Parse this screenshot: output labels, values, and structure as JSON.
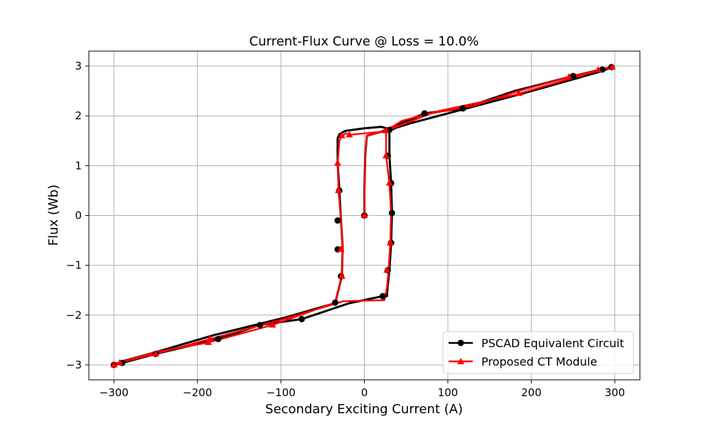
{
  "chart_data": {
    "type": "line",
    "title": "Current-Flux Curve  @ Loss = 10.0%",
    "xlabel": "Secondary Exciting Current (A)",
    "ylabel": "Flux (Wb)",
    "xlim": [
      -330,
      330
    ],
    "ylim": [
      -3.3,
      3.3
    ],
    "xticks": [
      -300,
      -200,
      -100,
      0,
      100,
      200,
      300
    ],
    "yticks": [
      -3,
      -2,
      -1,
      0,
      1,
      2,
      3
    ],
    "xtick_labels": [
      "−300",
      "−200",
      "−100",
      "0",
      "100",
      "200",
      "300"
    ],
    "ytick_labels": [
      "−3",
      "−2",
      "−1",
      "0",
      "1",
      "2",
      "3"
    ],
    "grid": true,
    "legend_position": "lower-right",
    "series": [
      {
        "name": "PSCAD Equivalent Circuit",
        "color": "#000000",
        "marker": "circle",
        "x": [
          0,
          0,
          1,
          3,
          20,
          72,
          118,
          180,
          250,
          296,
          285,
          190,
          100,
          55,
          30,
          30,
          32,
          33,
          32,
          30,
          28,
          27,
          25,
          22,
          -18,
          -75,
          -125,
          -175,
          -250,
          -290,
          -300,
          -288,
          -245,
          -180,
          -95,
          -35,
          -27,
          -26,
          -28,
          -30,
          -32,
          -32,
          -30,
          -28,
          -25,
          -22,
          0,
          20,
          33,
          72,
          118,
          180,
          250,
          296
        ],
        "y": [
          0,
          0.5,
          1.2,
          1.6,
          1.68,
          2.05,
          2.15,
          2.5,
          2.8,
          2.98,
          2.9,
          2.45,
          2.05,
          1.85,
          1.72,
          1.2,
          0.65,
          0.05,
          -0.55,
          -1.1,
          -1.4,
          -1.62,
          -1.62,
          -1.62,
          -1.76,
          -2.08,
          -2.2,
          -2.48,
          -2.78,
          -2.96,
          -3.0,
          -2.92,
          -2.72,
          -2.4,
          -2.05,
          -1.76,
          -1.22,
          -0.65,
          -0.1,
          0.5,
          1.05,
          1.55,
          1.63,
          1.65,
          1.68,
          1.7,
          1.75,
          1.78,
          1.72,
          2.05,
          2.15,
          2.5,
          2.8,
          2.98
        ],
        "marker_x": [
          0,
          72,
          118,
          250,
          296,
          285,
          30,
          28,
          32,
          33,
          32,
          28,
          22,
          -75,
          -125,
          -175,
          -250,
          -290,
          -300,
          -35,
          -28,
          -32,
          -32,
          -30
        ],
        "marker_y": [
          0,
          2.05,
          2.15,
          2.8,
          2.98,
          2.93,
          1.72,
          1.2,
          0.65,
          0.05,
          -0.55,
          -1.1,
          -1.62,
          -2.08,
          -2.2,
          -2.48,
          -2.78,
          -2.96,
          -3.0,
          -1.75,
          -1.22,
          -0.68,
          -0.1,
          0.5
        ]
      },
      {
        "name": "Proposed CT Module",
        "color": "#ff0000",
        "marker": "triangle",
        "x": [
          0,
          0,
          1,
          3,
          22,
          80,
          130,
          185,
          245,
          297,
          282,
          180,
          90,
          45,
          26,
          26,
          30,
          32,
          31,
          29,
          27,
          24,
          -25,
          -90,
          -145,
          -185,
          -250,
          -295,
          -300,
          -293,
          -252,
          -187,
          -110,
          -35,
          -27,
          -26,
          -28,
          -31,
          -32,
          -30,
          -27,
          -22,
          -18,
          20,
          26,
          80,
          130,
          185,
          245,
          297
        ],
        "y": [
          0,
          0.3,
          1.2,
          1.6,
          1.68,
          2.05,
          2.2,
          2.5,
          2.78,
          2.98,
          2.92,
          2.42,
          2.1,
          1.9,
          1.7,
          1.2,
          0.65,
          0.05,
          -0.55,
          -1.1,
          -1.45,
          -1.7,
          -1.72,
          -2.05,
          -2.3,
          -2.48,
          -2.78,
          -2.96,
          -3.0,
          -2.95,
          -2.75,
          -2.55,
          -2.2,
          -1.75,
          -1.22,
          -0.68,
          -0.1,
          0.5,
          1.05,
          1.5,
          1.6,
          1.65,
          1.62,
          1.68,
          1.7,
          2.05,
          2.2,
          2.5,
          2.78,
          2.98
        ],
        "marker_x": [
          0,
          185,
          245,
          297,
          280,
          26,
          26,
          30,
          31,
          27,
          -110,
          -185,
          -250,
          -293,
          -300,
          -187,
          -27,
          -28,
          -31,
          -32,
          -27,
          -18
        ],
        "marker_y": [
          0,
          2.45,
          2.78,
          2.98,
          2.92,
          1.7,
          1.2,
          0.65,
          -0.55,
          -1.1,
          -2.2,
          -2.48,
          -2.78,
          -2.96,
          -3.0,
          -2.55,
          -1.22,
          -0.68,
          0.5,
          1.05,
          1.6,
          1.62
        ]
      }
    ]
  }
}
